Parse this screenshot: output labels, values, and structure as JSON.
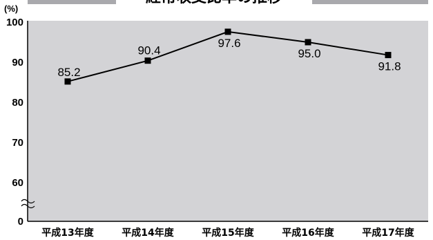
{
  "chart_data": {
    "type": "line",
    "title": "経常収支比率の推移",
    "ylabel_unit": "(%)",
    "categories": [
      "平成13年度",
      "平成14年度",
      "平成15年度",
      "平成16年度",
      "平成17年度"
    ],
    "series": [
      {
        "values": [
          85.2,
          90.4,
          97.6,
          95.0,
          91.8
        ]
      }
    ],
    "data_labels": [
      "85.2",
      "90.4",
      "97.6",
      "95.0",
      "91.8"
    ],
    "y_ticks": [
      "0",
      "60",
      "70",
      "80",
      "90",
      "100"
    ],
    "ylim": [
      0,
      100
    ],
    "axis_break": "~",
    "axis_break_between": [
      0,
      60
    ],
    "grid": false,
    "colors": {
      "plot_background": "#d3d3d6",
      "line": "#000000",
      "marker": "#000000"
    }
  }
}
